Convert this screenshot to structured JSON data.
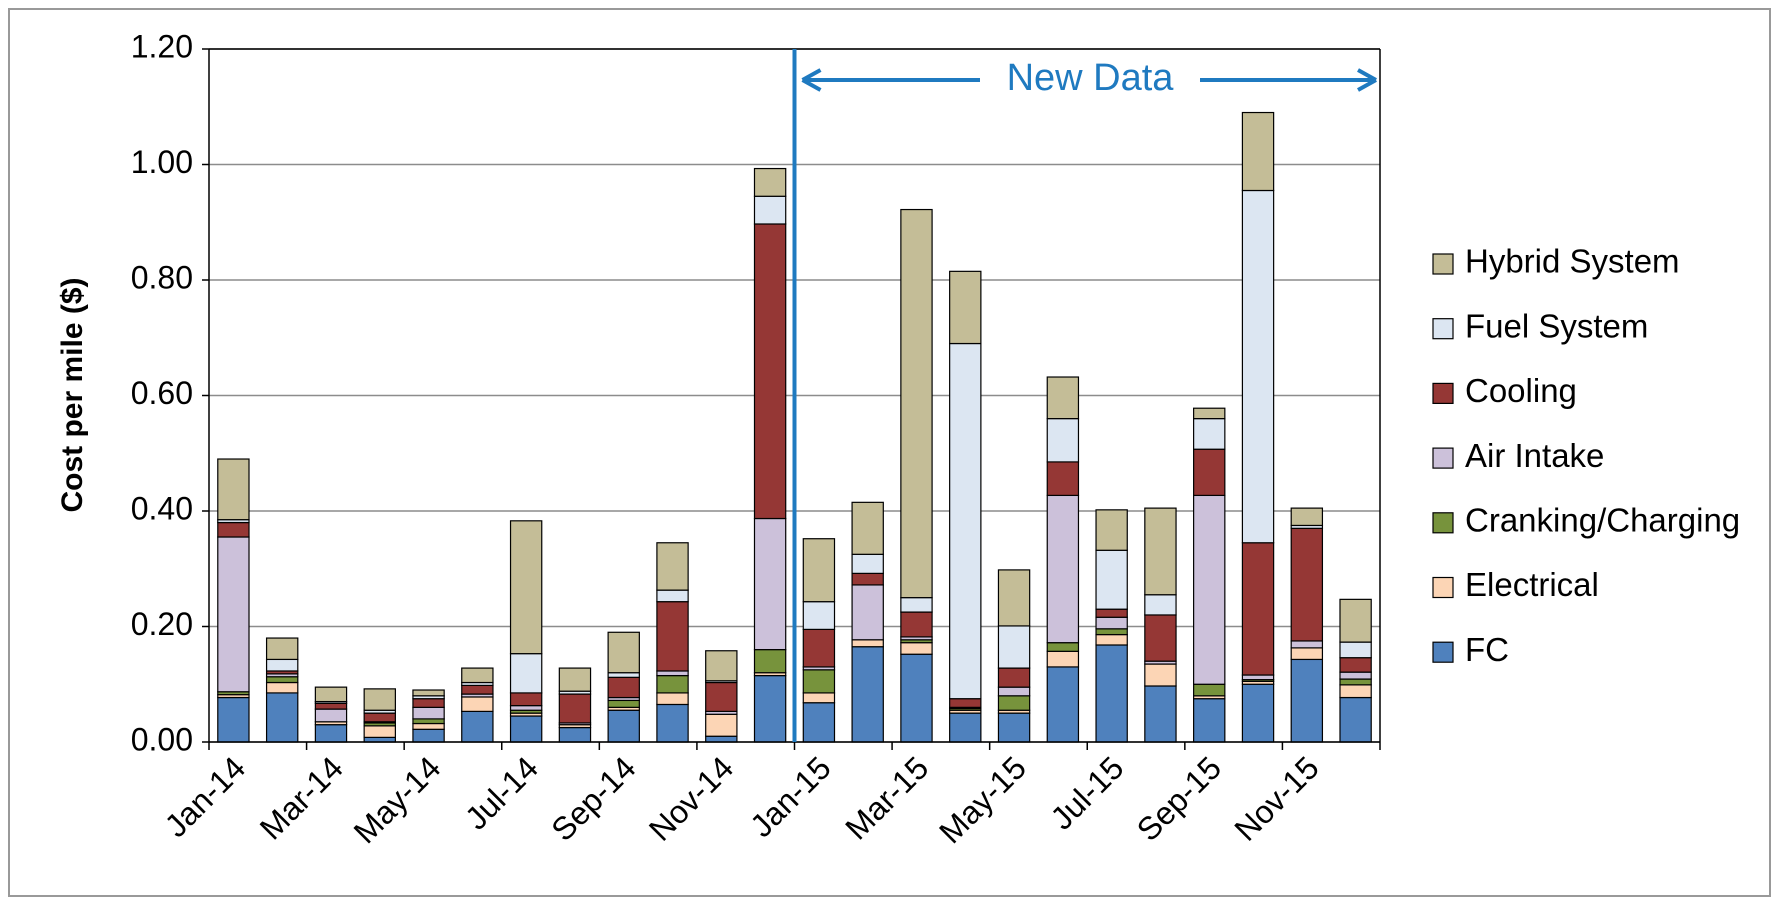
{
  "chart_data": {
    "type": "stacked_bar",
    "y_label": "Cost per mile ($)",
    "annotation": "New Data",
    "categories": [
      "Jan-14",
      null,
      "Mar-14",
      null,
      "May-14",
      null,
      "Jul-14",
      null,
      "Sep-14",
      null,
      "Nov-14",
      null,
      "Jan-15",
      null,
      "Mar-15",
      null,
      "May-15",
      null,
      "Jul-15",
      null,
      "Sep-15",
      null,
      "Nov-15",
      null
    ],
    "series": [
      {
        "name": "FC",
        "color": "#4f81bd",
        "values": [
          0.077,
          0.085,
          0.03,
          0.008,
          0.022,
          0.053,
          0.045,
          0.025,
          0.055,
          0.065,
          0.01,
          0.115,
          0.068,
          0.165,
          0.152,
          0.05,
          0.05,
          0.13,
          0.168,
          0.097,
          0.075,
          0.1,
          0.143,
          0.077
        ]
      },
      {
        "name": "Electrical",
        "color": "#fcd5b5",
        "values": [
          0.005,
          0.018,
          0.005,
          0.02,
          0.01,
          0.025,
          0.005,
          0.005,
          0.005,
          0.02,
          0.038,
          0.005,
          0.017,
          0.012,
          0.02,
          0.005,
          0.005,
          0.027,
          0.018,
          0.038,
          0.005,
          0.005,
          0.02,
          0.022
        ]
      },
      {
        "name": "Cranking/Charging",
        "color": "#77933c",
        "values": [
          0.005,
          0.01,
          0,
          0.005,
          0.008,
          0,
          0.005,
          0,
          0.012,
          0.03,
          0,
          0.04,
          0.04,
          0,
          0.005,
          0.003,
          0.025,
          0.015,
          0.01,
          0,
          0.02,
          0.003,
          0,
          0.01
        ]
      },
      {
        "name": "Air Intake",
        "color": "#ccc1da",
        "values": [
          0.268,
          0.005,
          0.022,
          0.002,
          0.02,
          0.005,
          0.008,
          0.003,
          0.005,
          0.008,
          0.005,
          0.227,
          0.005,
          0.095,
          0.005,
          0.002,
          0.015,
          0.255,
          0.02,
          0.005,
          0.327,
          0.008,
          0.012,
          0.012
        ]
      },
      {
        "name": "Cooling",
        "color": "#953735",
        "values": [
          0.025,
          0.005,
          0.01,
          0.015,
          0.015,
          0.015,
          0.022,
          0.05,
          0.035,
          0.12,
          0.05,
          0.51,
          0.065,
          0.02,
          0.043,
          0.015,
          0.033,
          0.058,
          0.014,
          0.08,
          0.08,
          0.229,
          0.195,
          0.025
        ]
      },
      {
        "name": "Fuel System",
        "color": "#dce6f2",
        "values": [
          0.005,
          0.02,
          0.003,
          0.005,
          0.005,
          0.005,
          0.068,
          0.005,
          0.008,
          0.02,
          0.003,
          0.048,
          0.048,
          0.033,
          0.025,
          0.615,
          0.073,
          0.075,
          0.102,
          0.035,
          0.053,
          0.61,
          0.005,
          0.027
        ]
      },
      {
        "name": "Hybrid System",
        "color": "#c4bd97",
        "values": [
          0.105,
          0.037,
          0.025,
          0.037,
          0.01,
          0.025,
          0.23,
          0.04,
          0.07,
          0.082,
          0.052,
          0.048,
          0.109,
          0.09,
          0.672,
          0.125,
          0.097,
          0.072,
          0.07,
          0.15,
          0.018,
          0.135,
          0.03,
          0.074
        ]
      }
    ],
    "ylim": [
      0,
      1.2
    ],
    "yticks": [
      {
        "value": 0,
        "label": "0.00"
      },
      {
        "value": 0.2,
        "label": "0.20"
      },
      {
        "value": 0.4,
        "label": "0.40"
      },
      {
        "value": 0.6,
        "label": "0.60"
      },
      {
        "value": 0.8,
        "label": "0.80"
      },
      {
        "value": 1,
        "label": "1.00"
      },
      {
        "value": 1.2,
        "label": "1.20"
      }
    ],
    "grid": true
  }
}
